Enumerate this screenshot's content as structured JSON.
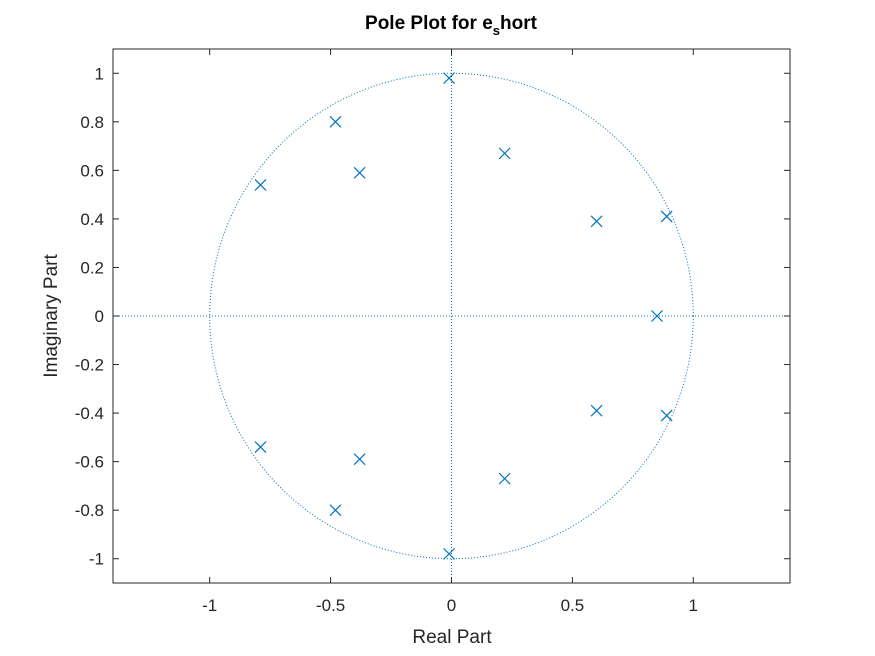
{
  "chart_data": {
    "type": "scatter",
    "title": {
      "main": "Pole Plot for e",
      "subscript": "s",
      "suffix": "hort"
    },
    "xlabel": "Real Part",
    "ylabel": "Imaginary Part",
    "xlim": [
      -1.4,
      1.4
    ],
    "ylim": [
      -1.1,
      1.1
    ],
    "x_ticks": [
      -1,
      -0.5,
      0,
      0.5,
      1
    ],
    "x_tick_labels": [
      "-1",
      "-0.5",
      "0",
      "0.5",
      "1"
    ],
    "y_ticks": [
      1,
      0.8,
      0.6,
      0.4,
      0.2,
      0,
      -0.2,
      -0.4,
      -0.6,
      -0.8,
      -1
    ],
    "y_tick_labels": [
      "1",
      "0.8",
      "0.6",
      "0.4",
      "0.2",
      "0",
      "-0.2",
      "-0.4",
      "-0.6",
      "-0.8",
      "-1"
    ],
    "grid": false,
    "unit_circle": true,
    "marker": "x",
    "color": "#0072BD",
    "axis_color": "#262626",
    "series": [
      {
        "name": "poles",
        "points": [
          {
            "x": -0.01,
            "y": 0.98
          },
          {
            "x": 0.22,
            "y": 0.67
          },
          {
            "x": 0.6,
            "y": 0.39
          },
          {
            "x": 0.89,
            "y": 0.41
          },
          {
            "x": 0.85,
            "y": 0.0
          },
          {
            "x": 0.6,
            "y": -0.39
          },
          {
            "x": 0.89,
            "y": -0.41
          },
          {
            "x": 0.22,
            "y": -0.67
          },
          {
            "x": -0.01,
            "y": -0.98
          },
          {
            "x": -0.48,
            "y": 0.8
          },
          {
            "x": -0.38,
            "y": 0.59
          },
          {
            "x": -0.79,
            "y": 0.54
          },
          {
            "x": -0.79,
            "y": -0.54
          },
          {
            "x": -0.38,
            "y": -0.59
          },
          {
            "x": -0.48,
            "y": -0.8
          }
        ]
      }
    ]
  }
}
